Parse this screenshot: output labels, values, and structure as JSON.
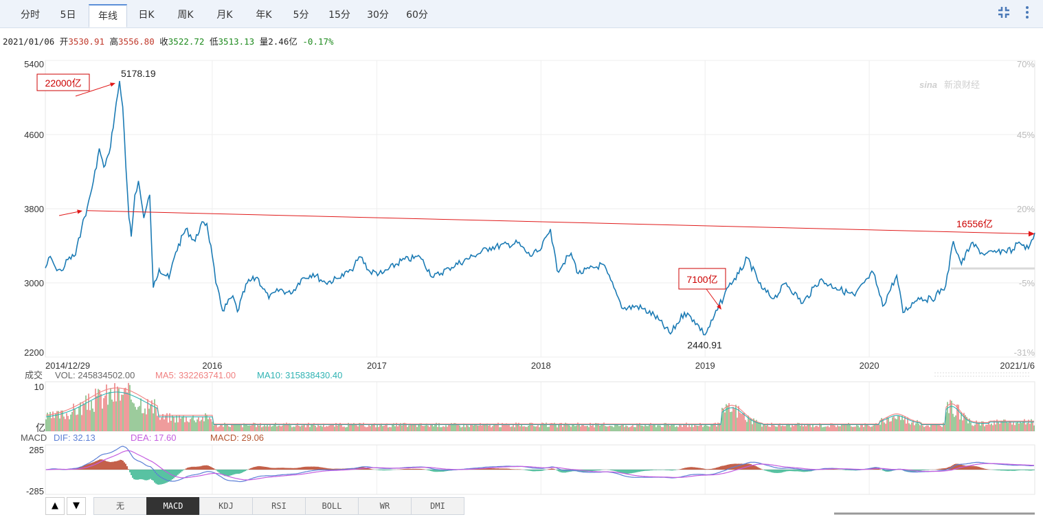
{
  "tabs": [
    {
      "label": "分时"
    },
    {
      "label": "5日"
    },
    {
      "label": "年线",
      "active": true
    },
    {
      "label": "日K"
    },
    {
      "label": "周K"
    },
    {
      "label": "月K"
    },
    {
      "label": "年K"
    },
    {
      "label": "5分"
    },
    {
      "label": "15分"
    },
    {
      "label": "30分"
    },
    {
      "label": "60分"
    }
  ],
  "quote": {
    "date": "2021/01/06",
    "open_label": "开",
    "open": "3530.91",
    "high_label": "高",
    "high": "3556.80",
    "close_label": "收",
    "close": "3522.72",
    "low_label": "低",
    "low": "3513.13",
    "vol_label": "量",
    "vol": "2.46亿",
    "change": "-0.17%"
  },
  "watermark": "新浪财经",
  "volume_panel": {
    "label": "成交",
    "unit": "亿",
    "max_tick": "10",
    "vol_text": "VOL: 245834502.00",
    "ma5_text": "MA5: 332263741.00",
    "ma10_text": "MA10: 315838430.40"
  },
  "macd_panel": {
    "label": "MACD",
    "dif_text": "DIF: 32.13",
    "dea_text": "DEA: 17.60",
    "macd_text": "MACD: 29.06",
    "ticks": [
      "285",
      "-285"
    ]
  },
  "indicator_tabs": [
    "无",
    "MACD",
    "KDJ",
    "RSI",
    "BOLL",
    "WR",
    "DMI"
  ],
  "active_indicator": "MACD",
  "annotations": [
    {
      "text": "22000亿",
      "color": "#cc0000"
    },
    {
      "text": "7100亿",
      "color": "#cc0000"
    },
    {
      "text": "16556亿",
      "color": "#cc0000"
    }
  ],
  "chart_data": {
    "type": "line",
    "x_start": "2014/12/29",
    "x_end": "2021/1/6",
    "x_year_ticks": [
      "2016",
      "2017",
      "2018",
      "2019",
      "2020"
    ],
    "y_ticks": [
      5400,
      4600,
      3800,
      3000,
      2200
    ],
    "ylim": [
      2200,
      5400
    ],
    "pct_ticks": [
      "70%",
      "45%",
      "20%",
      "-5%",
      "-31%"
    ],
    "high_label": "5178.19",
    "low_label": "2440.91",
    "trend_line": {
      "from": {
        "x": "2015/04/01",
        "y": 3780
      },
      "to": {
        "x": "2021/01/06",
        "y": 3530
      }
    },
    "color": "#1a7ab4",
    "series": [
      {
        "values": [
          {
            "x": "2014/12/29",
            "y": 3160
          },
          {
            "x": "2015/01/09",
            "y": 3285
          },
          {
            "x": "2015/01/20",
            "y": 3170
          },
          {
            "x": "2015/02/03",
            "y": 3130
          },
          {
            "x": "2015/02/17",
            "y": 3250
          },
          {
            "x": "2015/03/06",
            "y": 3300
          },
          {
            "x": "2015/03/20",
            "y": 3600
          },
          {
            "x": "2015/04/01",
            "y": 3810
          },
          {
            "x": "2015/04/15",
            "y": 4100
          },
          {
            "x": "2015/04/28",
            "y": 4450
          },
          {
            "x": "2015/05/08",
            "y": 4250
          },
          {
            "x": "2015/05/20",
            "y": 4400
          },
          {
            "x": "2015/06/01",
            "y": 4800
          },
          {
            "x": "2015/06/12",
            "y": 5178
          },
          {
            "x": "2015/06/19",
            "y": 4900
          },
          {
            "x": "2015/06/26",
            "y": 4250
          },
          {
            "x": "2015/07/03",
            "y": 3700
          },
          {
            "x": "2015/07/08",
            "y": 3500
          },
          {
            "x": "2015/07/16",
            "y": 3950
          },
          {
            "x": "2015/07/24",
            "y": 4100
          },
          {
            "x": "2015/08/05",
            "y": 3700
          },
          {
            "x": "2015/08/18",
            "y": 3950
          },
          {
            "x": "2015/08/26",
            "y": 2950
          },
          {
            "x": "2015/09/08",
            "y": 3150
          },
          {
            "x": "2015/09/30",
            "y": 3050
          },
          {
            "x": "2015/10/15",
            "y": 3330
          },
          {
            "x": "2015/11/06",
            "y": 3580
          },
          {
            "x": "2015/11/27",
            "y": 3450
          },
          {
            "x": "2015/12/09",
            "y": 3620
          },
          {
            "x": "2015/12/23",
            "y": 3640
          },
          {
            "x": "2016/01/04",
            "y": 3300
          },
          {
            "x": "2016/01/12",
            "y": 3000
          },
          {
            "x": "2016/01/27",
            "y": 2700
          },
          {
            "x": "2016/02/19",
            "y": 2860
          },
          {
            "x": "2016/02/29",
            "y": 2690
          },
          {
            "x": "2016/03/22",
            "y": 3000
          },
          {
            "x": "2016/04/13",
            "y": 3060
          },
          {
            "x": "2016/05/09",
            "y": 2830
          },
          {
            "x": "2016/06/03",
            "y": 2930
          },
          {
            "x": "2016/06/27",
            "y": 2880
          },
          {
            "x": "2016/07/20",
            "y": 3040
          },
          {
            "x": "2016/08/15",
            "y": 3100
          },
          {
            "x": "2016/09/12",
            "y": 3000
          },
          {
            "x": "2016/10/12",
            "y": 3050
          },
          {
            "x": "2016/11/08",
            "y": 3140
          },
          {
            "x": "2016/11/29",
            "y": 3280
          },
          {
            "x": "2016/12/20",
            "y": 3120
          },
          {
            "x": "2017/01/16",
            "y": 3100
          },
          {
            "x": "2017/02/28",
            "y": 3240
          },
          {
            "x": "2017/04/10",
            "y": 3280
          },
          {
            "x": "2017/05/10",
            "y": 3060
          },
          {
            "x": "2017/06/13",
            "y": 3160
          },
          {
            "x": "2017/08/08",
            "y": 3290
          },
          {
            "x": "2017/09/12",
            "y": 3380
          },
          {
            "x": "2017/11/13",
            "y": 3430
          },
          {
            "x": "2017/12/11",
            "y": 3290
          },
          {
            "x": "2018/01/02",
            "y": 3350
          },
          {
            "x": "2018/01/25",
            "y": 3580
          },
          {
            "x": "2018/02/09",
            "y": 3130
          },
          {
            "x": "2018/03/12",
            "y": 3320
          },
          {
            "x": "2018/03/28",
            "y": 3100
          },
          {
            "x": "2018/05/22",
            "y": 3200
          },
          {
            "x": "2018/06/22",
            "y": 2870
          },
          {
            "x": "2018/07/06",
            "y": 2720
          },
          {
            "x": "2018/08/06",
            "y": 2750
          },
          {
            "x": "2018/09/13",
            "y": 2650
          },
          {
            "x": "2018/10/19",
            "y": 2450
          },
          {
            "x": "2018/11/19",
            "y": 2680
          },
          {
            "x": "2018/12/10",
            "y": 2600
          },
          {
            "x": "2019/01/04",
            "y": 2440
          },
          {
            "x": "2019/01/21",
            "y": 2600
          },
          {
            "x": "2019/02/25",
            "y": 2960
          },
          {
            "x": "2019/03/20",
            "y": 3100
          },
          {
            "x": "2019/04/08",
            "y": 3270
          },
          {
            "x": "2019/05/10",
            "y": 2940
          },
          {
            "x": "2019/06/06",
            "y": 2830
          },
          {
            "x": "2019/07/03",
            "y": 3000
          },
          {
            "x": "2019/08/09",
            "y": 2780
          },
          {
            "x": "2019/09/16",
            "y": 3030
          },
          {
            "x": "2019/10/21",
            "y": 2950
          },
          {
            "x": "2019/12/03",
            "y": 2860
          },
          {
            "x": "2019/12/31",
            "y": 3050
          },
          {
            "x": "2020/01/13",
            "y": 3110
          },
          {
            "x": "2020/02/03",
            "y": 2750
          },
          {
            "x": "2020/03/05",
            "y": 3080
          },
          {
            "x": "2020/03/19",
            "y": 2680
          },
          {
            "x": "2020/04/22",
            "y": 2840
          },
          {
            "x": "2020/05/22",
            "y": 2820
          },
          {
            "x": "2020/06/22",
            "y": 2970
          },
          {
            "x": "2020/07/09",
            "y": 3450
          },
          {
            "x": "2020/07/27",
            "y": 3200
          },
          {
            "x": "2020/08/18",
            "y": 3430
          },
          {
            "x": "2020/09/16",
            "y": 3300
          },
          {
            "x": "2020/10/15",
            "y": 3340
          },
          {
            "x": "2020/11/18",
            "y": 3360
          },
          {
            "x": "2020/12/02",
            "y": 3440
          },
          {
            "x": "2020/12/23",
            "y": 3370
          },
          {
            "x": "2021/01/06",
            "y": 3540
          }
        ]
      }
    ]
  }
}
